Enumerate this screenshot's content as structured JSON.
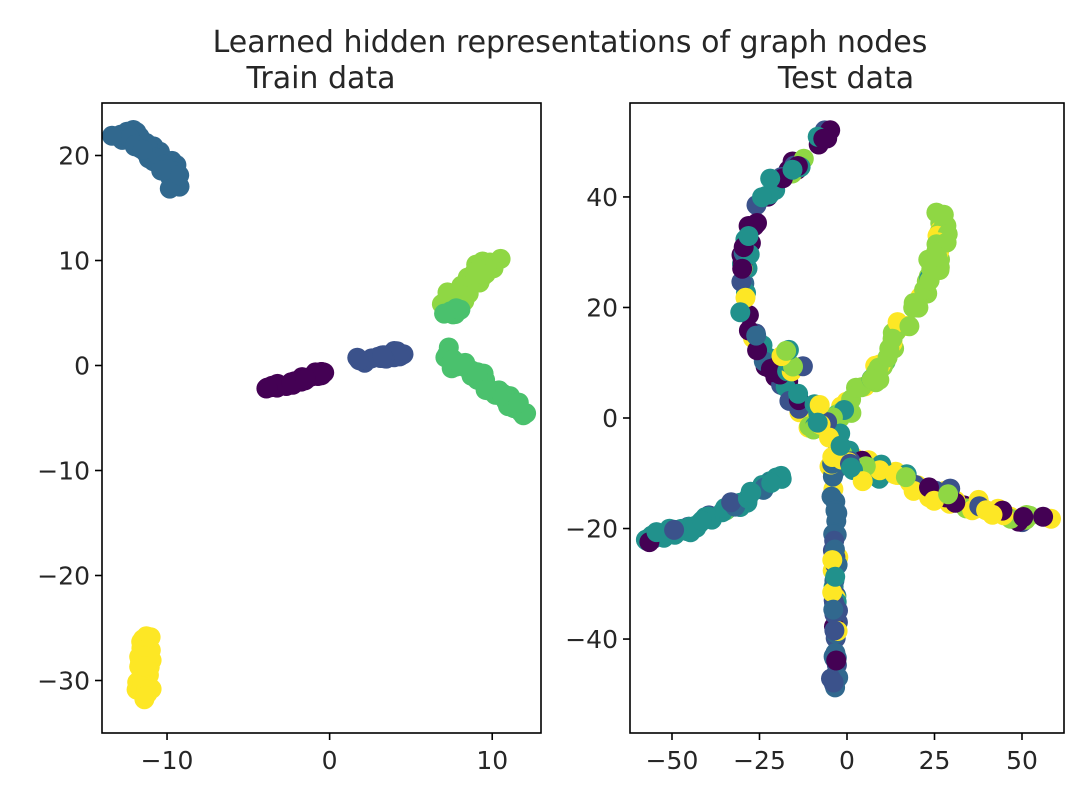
{
  "figure": {
    "suptitle": "Learned hidden representations of graph nodes"
  },
  "colors": {
    "c0": "#440154",
    "c1": "#3b528b",
    "c2": "#21918c",
    "c3": "#5ec962",
    "c4": "#4ac16d",
    "c5": "#fde725",
    "c6": "#31688e",
    "c7": "#8fd744"
  },
  "chart_data": [
    {
      "type": "scatter",
      "title": "Train data",
      "xlabel": "",
      "ylabel": "",
      "xlim": [
        -14,
        13
      ],
      "ylim": [
        -35,
        25
      ],
      "xticks": [
        -10,
        0,
        10
      ],
      "xtick_labels": [
        "−10",
        "0",
        "10"
      ],
      "yticks": [
        -30,
        -20,
        -10,
        0,
        10,
        20
      ],
      "ytick_labels": [
        "−30",
        "−20",
        "−10",
        "0",
        "10",
        "20"
      ],
      "grid": false,
      "legend": "none",
      "clusters": [
        {
          "class": "c6",
          "path": [
            [
              -12.8,
              21.8
            ],
            [
              -11.5,
              21.2
            ],
            [
              -10.6,
              19.8
            ],
            [
              -9.8,
              18.3
            ],
            [
              -9.3,
              17.2
            ]
          ],
          "spread": [
            0.6,
            0.8
          ],
          "n": 60
        },
        {
          "class": "c7",
          "path": [
            [
              7.2,
              6.2
            ],
            [
              8.2,
              7.0
            ],
            [
              9.2,
              8.5
            ],
            [
              9.8,
              9.8
            ]
          ],
          "spread": [
            0.7,
            1.0
          ],
          "n": 50
        },
        {
          "class": "c4",
          "path": [
            [
              7.0,
              4.3
            ],
            [
              8.0,
              5.5
            ]
          ],
          "spread": [
            0.4,
            0.6
          ],
          "n": 8
        },
        {
          "class": "c4",
          "path": [
            [
              7.0,
              1.2
            ],
            [
              9.0,
              -1.0
            ],
            [
              11.0,
              -3.3
            ],
            [
              12.2,
              -4.8
            ]
          ],
          "spread": [
            0.3,
            0.5
          ],
          "n": 55
        },
        {
          "class": "c1",
          "path": [
            [
              1.8,
              0.6
            ],
            [
              3.0,
              0.8
            ],
            [
              4.6,
              1.1
            ]
          ],
          "spread": [
            0.3,
            0.3
          ],
          "n": 18
        },
        {
          "class": "c0",
          "path": [
            [
              -3.8,
              -2.2
            ],
            [
              -2.0,
              -1.6
            ],
            [
              -0.2,
              -0.5
            ]
          ],
          "spread": [
            0.2,
            0.2
          ],
          "n": 35
        },
        {
          "class": "c5",
          "path": [
            [
              -11.3,
              -26.0
            ],
            [
              -11.3,
              -28.5
            ],
            [
              -11.4,
              -31.5
            ]
          ],
          "spread": [
            0.5,
            0.5
          ],
          "n": 55
        }
      ]
    },
    {
      "type": "scatter",
      "title": "Test data",
      "xlabel": "",
      "ylabel": "",
      "xlim": [
        -62,
        62
      ],
      "ylim": [
        -57,
        57
      ],
      "xticks": [
        -50,
        -25,
        0,
        25,
        50
      ],
      "xtick_labels": [
        "−50",
        "−25",
        "0",
        "25",
        "50"
      ],
      "yticks": [
        -40,
        -20,
        0,
        20,
        40
      ],
      "ytick_labels": [
        "−40",
        "−20",
        "0",
        "20",
        "40"
      ],
      "grid": false,
      "legend": "none",
      "arms": [
        {
          "path": [
            [
              -4,
              53
            ],
            [
              -10,
              48
            ],
            [
              -18,
              44
            ],
            [
              -25,
              38
            ],
            [
              -30,
              30
            ],
            [
              -29,
              20
            ],
            [
              -25,
              12
            ],
            [
              -18,
              6
            ],
            [
              -10,
              -2
            ]
          ],
          "spread": [
            1.6,
            1.2
          ],
          "n": 80,
          "mix": [
            [
              "c0",
              0.55
            ],
            [
              "c1",
              0.15
            ],
            [
              "c2",
              0.15
            ],
            [
              "c5",
              0.05
            ],
            [
              "c7",
              0.05
            ],
            [
              "c6",
              0.05
            ]
          ]
        },
        {
          "path": [
            [
              28,
              39
            ],
            [
              26,
              32
            ],
            [
              25,
              26
            ],
            [
              18,
              18
            ],
            [
              10,
              10
            ],
            [
              0,
              2
            ],
            [
              -6,
              -2
            ]
          ],
          "spread": [
            2.0,
            1.6
          ],
          "n": 70,
          "mix": [
            [
              "c7",
              0.7
            ],
            [
              "c5",
              0.18
            ],
            [
              "c3",
              0.07
            ],
            [
              "c2",
              0.05
            ]
          ]
        },
        {
          "path": [
            [
              -4,
              -8
            ],
            [
              -3,
              -18
            ],
            [
              -4,
              -28
            ],
            [
              -3,
              -38
            ],
            [
              -4,
              -51
            ]
          ],
          "spread": [
            0.9,
            1.0
          ],
          "n": 60,
          "mix": [
            [
              "c6",
              0.45
            ],
            [
              "c1",
              0.2
            ],
            [
              "c5",
              0.15
            ],
            [
              "c0",
              0.1
            ],
            [
              "c2",
              0.1
            ]
          ]
        },
        {
          "path": [
            [
              -58,
              -22
            ],
            [
              -45,
              -20
            ],
            [
              -35,
              -17
            ],
            [
              -25,
              -13
            ],
            [
              -18,
              -10
            ]
          ],
          "spread": [
            1.0,
            0.9
          ],
          "n": 55,
          "mix": [
            [
              "c2",
              0.7
            ],
            [
              "c6",
              0.12
            ],
            [
              "c1",
              0.08
            ],
            [
              "c0",
              0.05
            ],
            [
              "c3",
              0.05
            ]
          ]
        },
        {
          "path": [
            [
              -2,
              -6
            ],
            [
              10,
              -10
            ],
            [
              22,
              -13
            ],
            [
              35,
              -16
            ],
            [
              48,
              -18
            ],
            [
              57,
              -18
            ]
          ],
          "spread": [
            2.4,
            1.4
          ],
          "n": 70,
          "mix": [
            [
              "c5",
              0.5
            ],
            [
              "c0",
              0.15
            ],
            [
              "c2",
              0.1
            ],
            [
              "c1",
              0.1
            ],
            [
              "c7",
              0.15
            ]
          ]
        },
        {
          "path": [
            [
              -18,
              12
            ],
            [
              -10,
              2
            ],
            [
              -4,
              -4
            ],
            [
              4,
              -10
            ]
          ],
          "spread": [
            3.0,
            2.0
          ],
          "n": 30,
          "mix": [
            [
              "c1",
              0.3
            ],
            [
              "c2",
              0.3
            ],
            [
              "c7",
              0.2
            ],
            [
              "c5",
              0.2
            ]
          ]
        }
      ]
    }
  ]
}
